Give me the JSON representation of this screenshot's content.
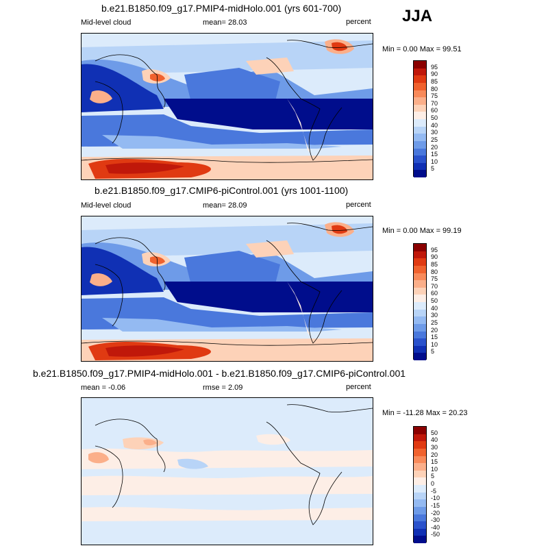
{
  "season": "JJA",
  "panels": [
    {
      "title": "b.e21.B1850.f09_g17.PMIP4-midHolo.001 (yrs 601-700)",
      "left_label": "Mid-level cloud",
      "center_label": "mean=  28.03",
      "right_label": "percent",
      "minmax": "Min =  0.00 Max =  99.51"
    },
    {
      "title": "b.e21.B1850.f09_g17.CMIP6-piControl.001 (yrs 1001-1100)",
      "left_label": "Mid-level cloud",
      "center_label": "mean=  28.09",
      "right_label": "percent",
      "minmax": "Min =  0.00 Max =  99.19"
    },
    {
      "title": "b.e21.B1850.f09_g17.PMIP4-midHolo.001 - b.e21.B1850.f09_g17.CMIP6-piControl.001",
      "left_label": "mean =  -0.06",
      "center_label": "rmse =   2.09",
      "right_label": "percent",
      "minmax": "Min = -11.28 Max =  20.23"
    }
  ],
  "colorbars": {
    "abs": {
      "labels": [
        "95",
        "90",
        "85",
        "80",
        "75",
        "70",
        "60",
        "50",
        "40",
        "30",
        "25",
        "20",
        "15",
        "10",
        "5"
      ],
      "colors": [
        "#8b0000",
        "#c0180a",
        "#e03a12",
        "#f0622e",
        "#f88a5a",
        "#fbaf8a",
        "#fdd2b8",
        "#fdeee6",
        "#dcebfb",
        "#b8d4f7",
        "#94baf2",
        "#6e9be8",
        "#4a78dc",
        "#2a52cc",
        "#1030b4",
        "#000d8c"
      ]
    },
    "diff": {
      "labels": [
        "50",
        "40",
        "30",
        "20",
        "15",
        "10",
        "5",
        "0",
        "-5",
        "-10",
        "-15",
        "-20",
        "-30",
        "-40",
        "-50"
      ],
      "colors": [
        "#8b0000",
        "#c0180a",
        "#e03a12",
        "#f0622e",
        "#f88a5a",
        "#fbaf8a",
        "#fdd2b8",
        "#fdeee6",
        "#dcebfb",
        "#b8d4f7",
        "#94baf2",
        "#6e9be8",
        "#4a78dc",
        "#2a52cc",
        "#1030b4",
        "#000d8c"
      ]
    }
  },
  "colors": {
    "deep_blue": "#000d8c",
    "mid_blue": "#4a78dc",
    "light_blue": "#b8d4f7",
    "pale_blue": "#dcebfb",
    "pale_red": "#fdd2b8",
    "red": "#e03a12",
    "dark_red": "#8b0000"
  }
}
